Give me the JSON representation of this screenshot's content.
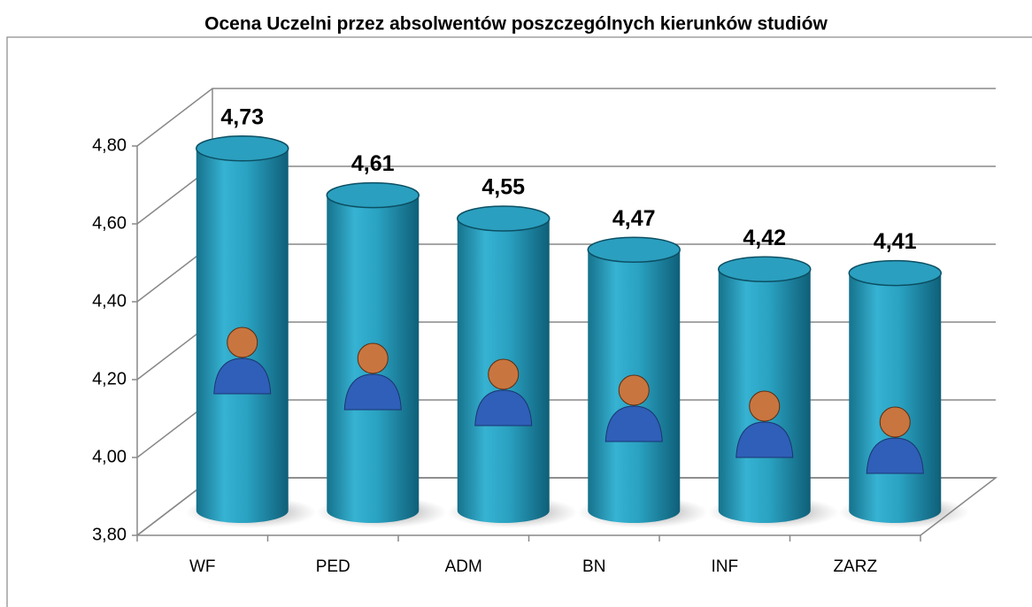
{
  "chart_data": {
    "type": "bar3d",
    "title": "Ocena Uczelni przez absolwentów poszczególnych kierunków studiów",
    "categories": [
      "WF",
      "PED",
      "ADM",
      "BN",
      "INF",
      "ZARZ"
    ],
    "values": [
      4.73,
      4.61,
      4.55,
      4.47,
      4.42,
      4.41
    ],
    "value_labels": [
      "4,73",
      "4,61",
      "4,55",
      "4,47",
      "4,42",
      "4,41"
    ],
    "color": "#2b9fbf",
    "ylim": [
      3.8,
      4.8
    ],
    "yticks": [
      {
        "value": 3.8,
        "label": "3,80"
      },
      {
        "value": 4.0,
        "label": "4,00"
      },
      {
        "value": 4.2,
        "label": "4,20"
      },
      {
        "value": 4.4,
        "label": "4,40"
      },
      {
        "value": 4.6,
        "label": "4,60"
      },
      {
        "value": 4.8,
        "label": "4,80"
      }
    ],
    "grid": true
  }
}
